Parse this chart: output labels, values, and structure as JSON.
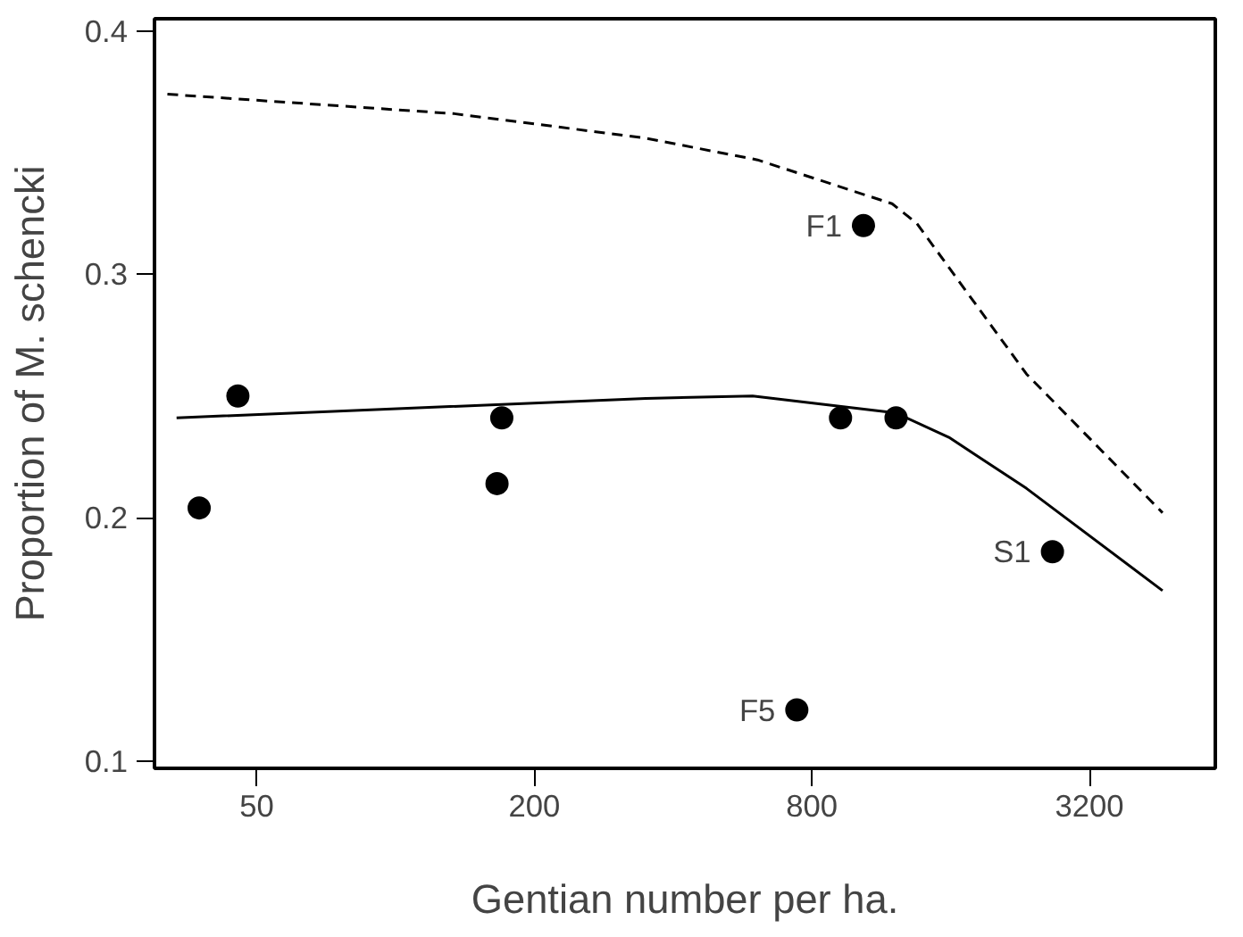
{
  "chart_data": {
    "type": "scatter",
    "xlabel": "Gentian number per ha.",
    "ylabel": "Proportion of M. schencki",
    "log": "x",
    "xlim": [
      30,
      6000
    ],
    "ylim": [
      0.097,
      0.405
    ],
    "xticks": [
      50,
      200,
      800,
      3200
    ],
    "yticks": [
      0.1,
      0.2,
      0.3,
      0.4
    ],
    "grid": false,
    "marker": "circle",
    "series": [
      {
        "color": "#000000",
        "x": [
          37.5,
          45.5,
          166,
          170,
          742,
          923,
          1035,
          1218,
          2660
        ],
        "values": [
          0.204,
          0.25,
          0.214,
          0.241,
          0.121,
          0.241,
          0.32,
          0.241,
          0.186
        ]
      },
      {
        "type": "line",
        "color": "#000000",
        "line_style": "solid",
        "marker": "none",
        "x": [
          33.5,
          349,
          595,
          1218,
          1586,
          2337,
          4610
        ],
        "values": [
          0.241,
          0.249,
          0.25,
          0.243,
          0.233,
          0.212,
          0.17
        ]
      },
      {
        "type": "line",
        "color": "#000000",
        "line_style": "dashed",
        "marker": "none",
        "x": [
          32,
          134,
          347,
          610,
          1194,
          1350,
          2337,
          4610
        ],
        "values": [
          0.374,
          0.366,
          0.356,
          0.347,
          0.329,
          0.321,
          0.259,
          0.202
        ]
      }
    ],
    "annotations": [
      {
        "text": "F1",
        "x": 1035,
        "y": 0.32
      },
      {
        "text": "S1",
        "x": 2660,
        "y": 0.186
      },
      {
        "text": "F5",
        "x": 742,
        "y": 0.121
      }
    ]
  }
}
